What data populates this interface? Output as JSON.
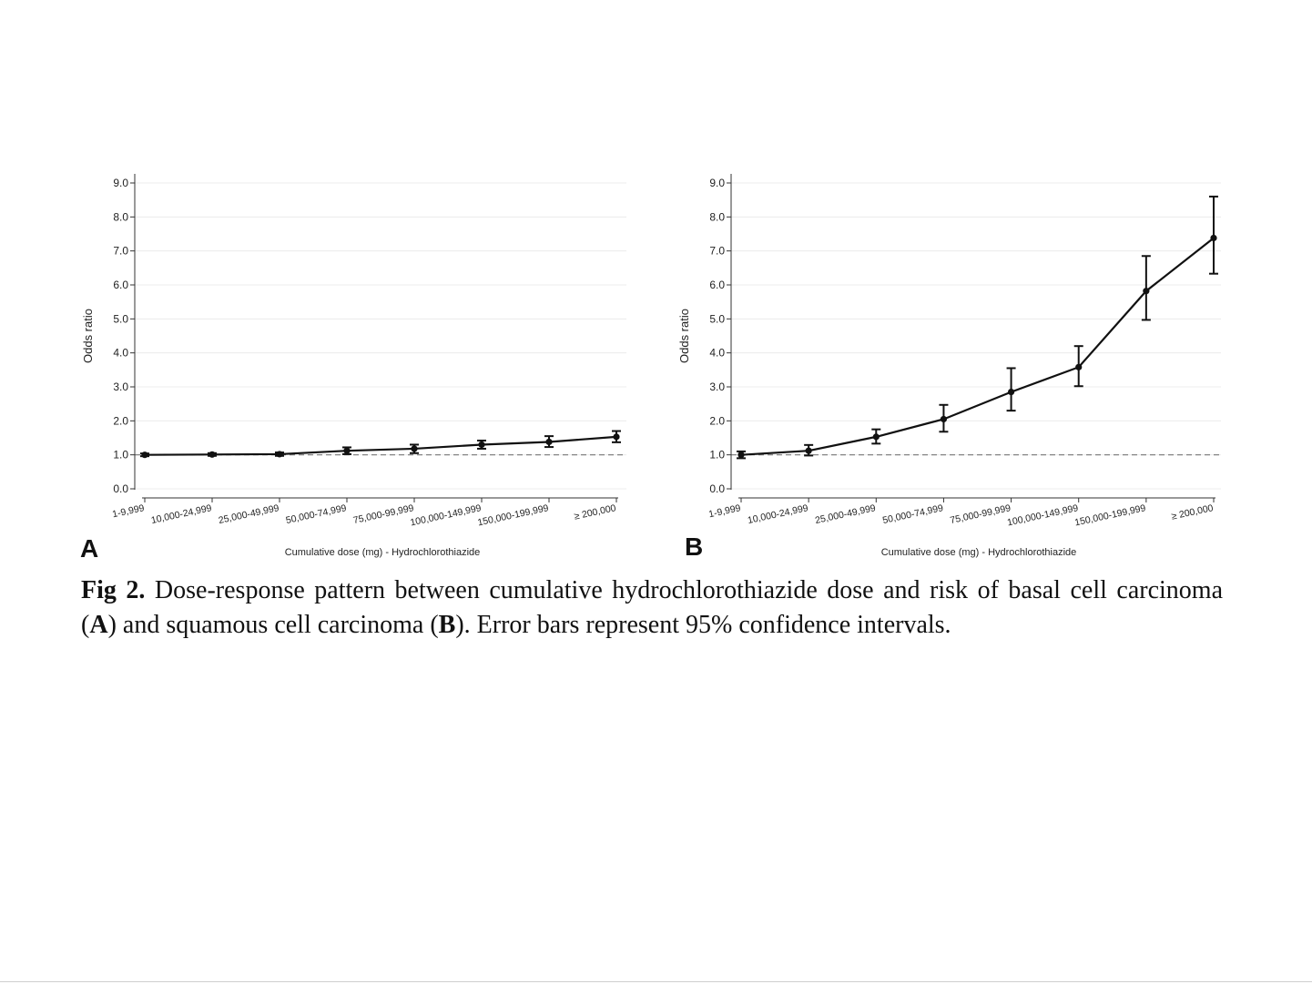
{
  "chart_data": [
    {
      "type": "line",
      "panel_label": "A",
      "xlabel": "Cumulative dose (mg) - Hydrochlorothiazide",
      "ylabel": "Odds ratio",
      "categories": [
        "1-9,999",
        "10,000-24,999",
        "25,000-49,999",
        "50,000-74,999",
        "75,000-99,999",
        "100,000-149,999",
        "150,000-199,999",
        "≥ 200,000"
      ],
      "yticks": [
        "0.0",
        "1.0",
        "2.0",
        "3.0",
        "4.0",
        "5.0",
        "6.0",
        "7.0",
        "8.0",
        "9.0"
      ],
      "ylim": [
        0,
        9
      ],
      "reference_line": 1.0,
      "grid": true,
      "series": [
        {
          "values": [
            1.0,
            1.01,
            1.02,
            1.12,
            1.18,
            1.3,
            1.38,
            1.53
          ],
          "ci_low": [
            0.96,
            0.97,
            0.97,
            1.02,
            1.05,
            1.18,
            1.23,
            1.37
          ],
          "ci_high": [
            1.04,
            1.05,
            1.07,
            1.22,
            1.3,
            1.42,
            1.55,
            1.7
          ]
        }
      ]
    },
    {
      "type": "line",
      "panel_label": "B",
      "xlabel": "Cumulative dose (mg) - Hydrochlorothiazide",
      "ylabel": "Odds ratio",
      "categories": [
        "1-9,999",
        "10,000-24,999",
        "25,000-49,999",
        "50,000-74,999",
        "75,000-99,999",
        "100,000-149,999",
        "150,000-199,999",
        "≥ 200,000"
      ],
      "yticks": [
        "0.0",
        "1.0",
        "2.0",
        "3.0",
        "4.0",
        "5.0",
        "6.0",
        "7.0",
        "8.0",
        "9.0"
      ],
      "ylim": [
        0,
        9
      ],
      "reference_line": 1.0,
      "grid": true,
      "series": [
        {
          "values": [
            1.0,
            1.12,
            1.53,
            2.05,
            2.85,
            3.58,
            5.82,
            7.38
          ],
          "ci_low": [
            0.9,
            0.98,
            1.33,
            1.68,
            2.3,
            3.02,
            4.97,
            6.33
          ],
          "ci_high": [
            1.1,
            1.29,
            1.75,
            2.47,
            3.55,
            4.2,
            6.85,
            8.6
          ]
        }
      ]
    }
  ],
  "caption": {
    "fig_label": "Fig 2.",
    "text_1": " Dose-response pattern between cumulative hydrochlorothiazide dose and risk of basal cell carcinoma (",
    "bold_a": "A",
    "text_2": ") and squamous cell carcinoma (",
    "bold_b": "B",
    "text_3": "). Error bars represent 95% confidence intervals."
  }
}
